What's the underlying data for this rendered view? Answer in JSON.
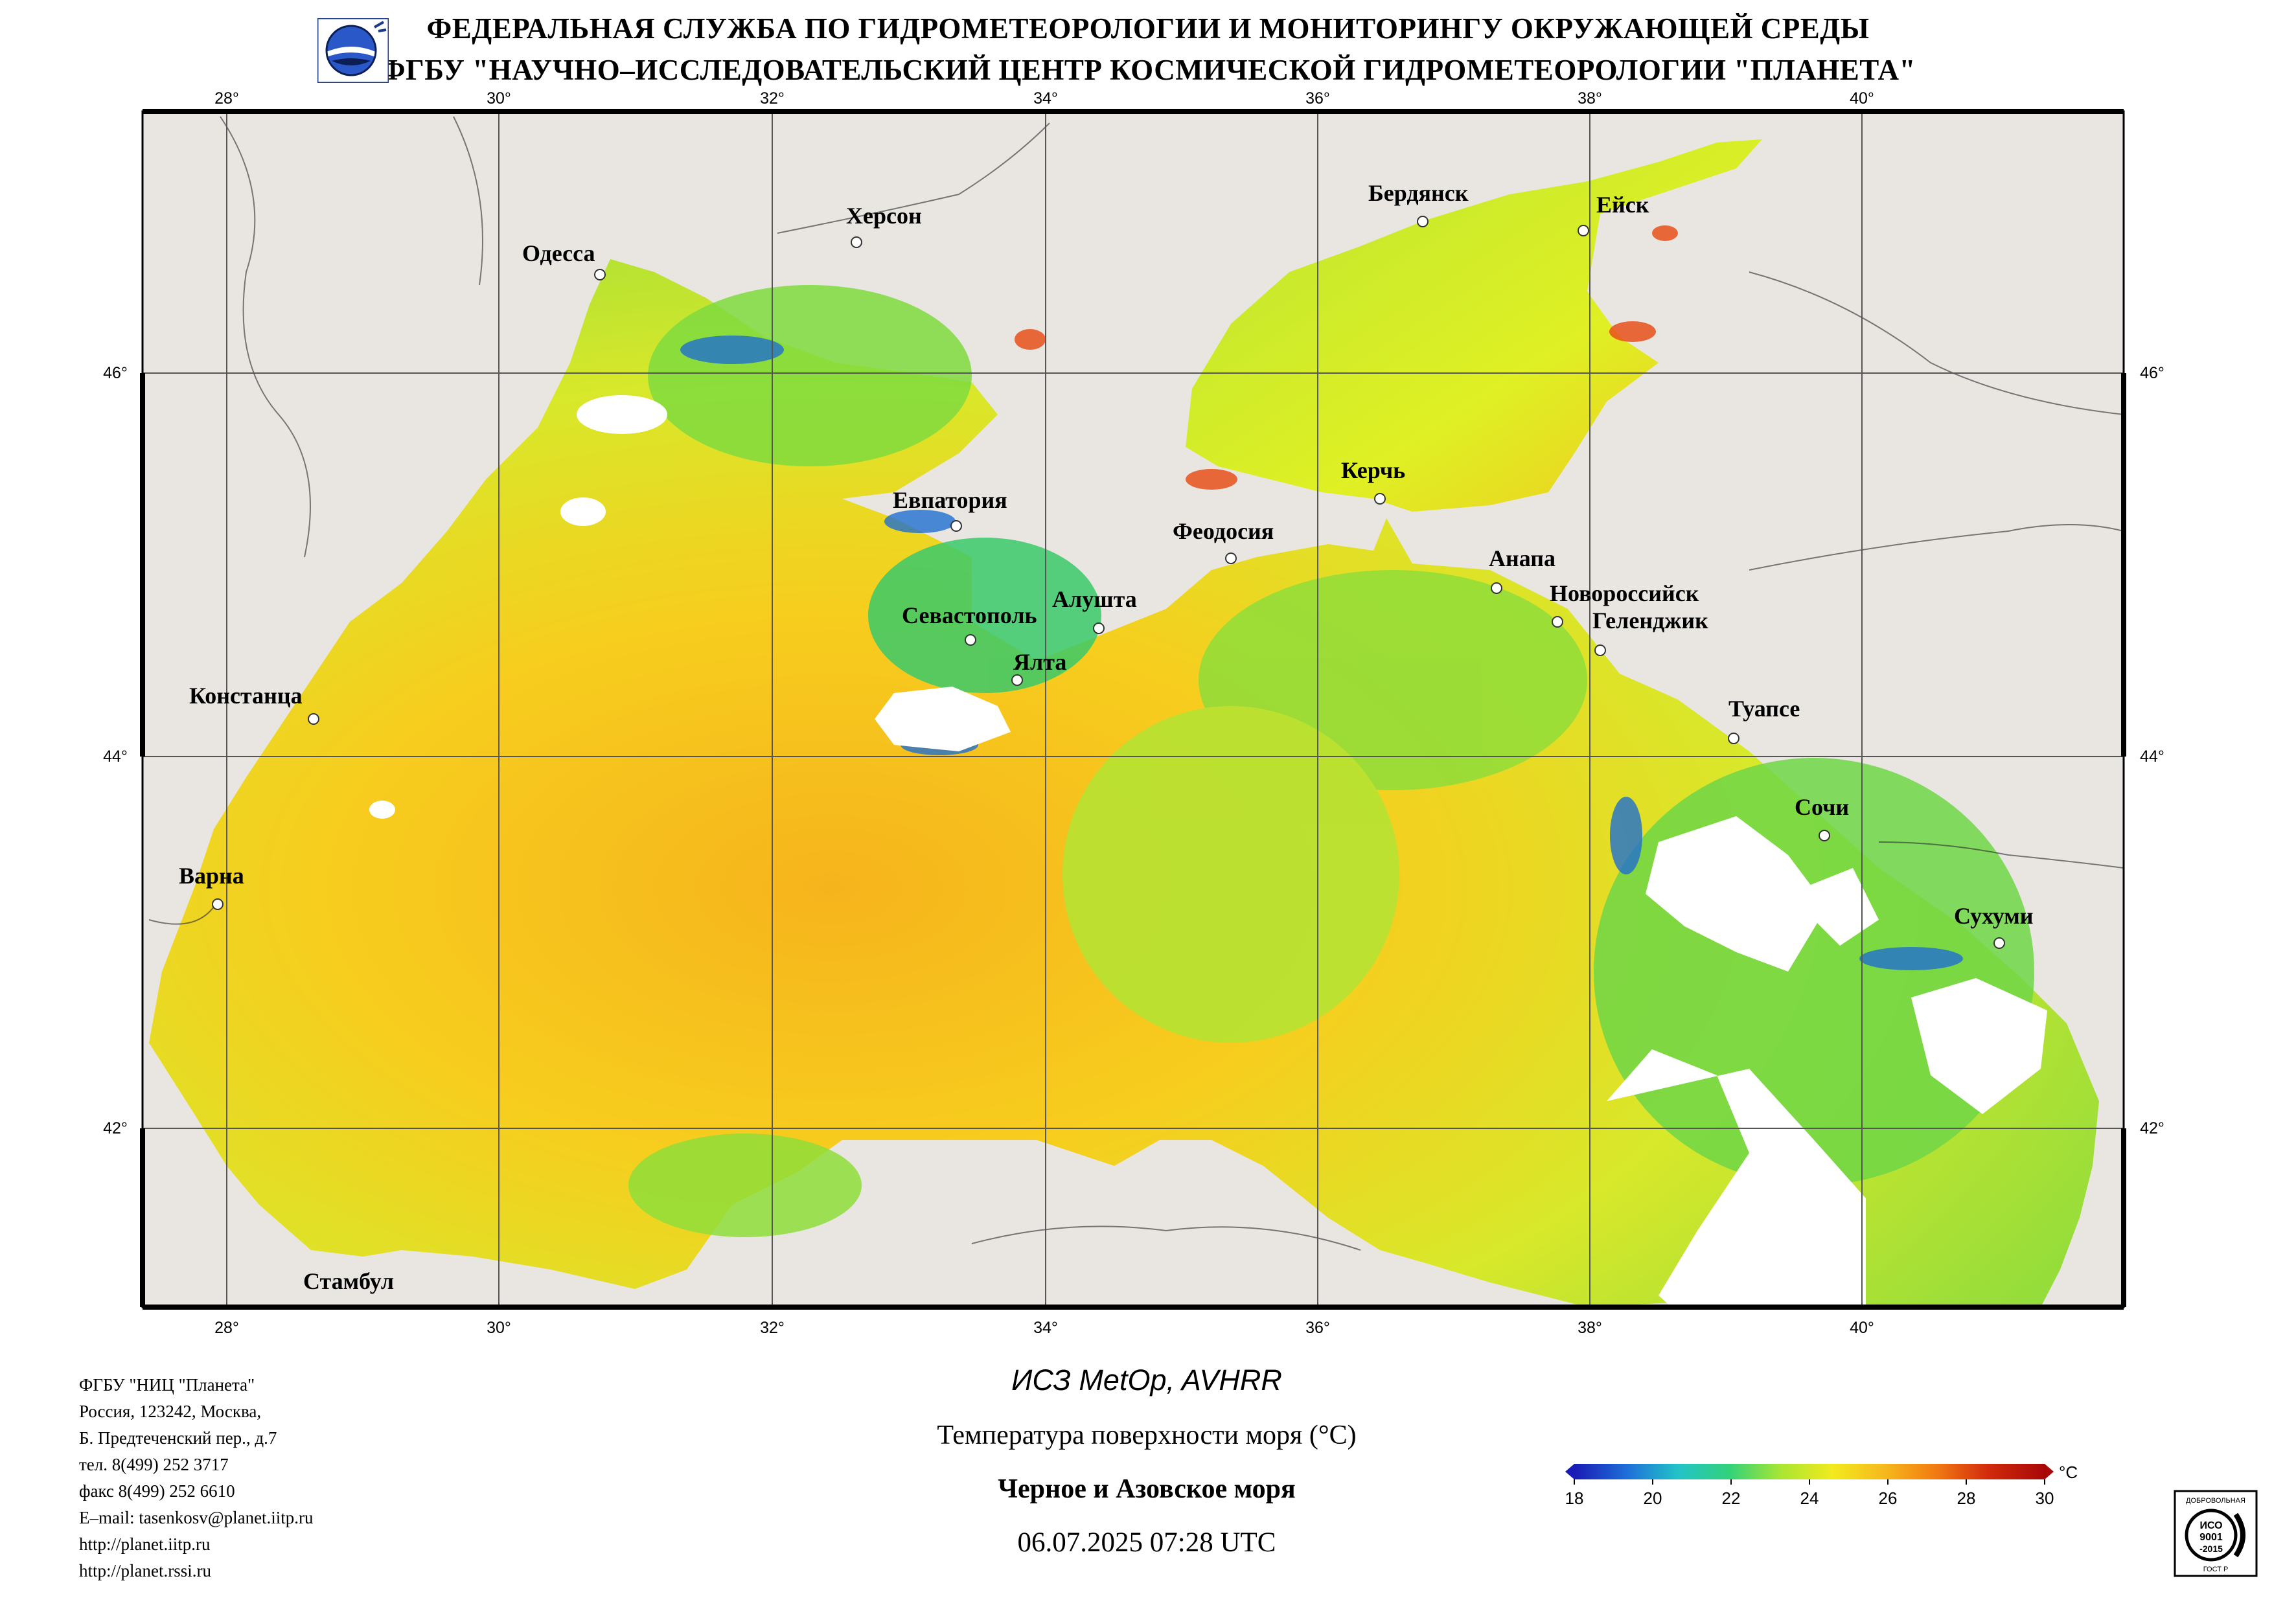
{
  "header": {
    "line1": "ФЕДЕРАЛЬНАЯ СЛУЖБА ПО ГИДРОМЕТЕОРОЛОГИИ И МОНИТОРИНГУ ОКРУЖАЮЩЕЙ СРЕДЫ",
    "line2": "ФГБУ \"НАУЧНО–ИССЛЕДОВАТЕЛЬСКИЙ ЦЕНТР КОСМИЧЕСКОЙ ГИДРОМЕТЕОРОЛОГИИ \"ПЛАНЕТА\""
  },
  "map": {
    "lon_ticks": [
      "28°",
      "30°",
      "32°",
      "34°",
      "36°",
      "38°",
      "40°"
    ],
    "lat_ticks": [
      "46°",
      "44°",
      "42°"
    ],
    "cities": [
      {
        "name": "Одесса"
      },
      {
        "name": "Херсон"
      },
      {
        "name": "Бердянск"
      },
      {
        "name": "Ейск"
      },
      {
        "name": "Керчь"
      },
      {
        "name": "Евпатория"
      },
      {
        "name": "Феодосия"
      },
      {
        "name": "Анапа"
      },
      {
        "name": "Севастополь"
      },
      {
        "name": "Алушта"
      },
      {
        "name": "Новороссийск"
      },
      {
        "name": "Геленджик"
      },
      {
        "name": "Ялта"
      },
      {
        "name": "Констанца"
      },
      {
        "name": "Туапсе"
      },
      {
        "name": "Сочи"
      },
      {
        "name": "Варна"
      },
      {
        "name": "Сухуми"
      },
      {
        "name": "Стамбул"
      }
    ],
    "colors": {
      "land": "#e9e6e2",
      "cloud": "#ffffff",
      "sst_warm": "#f6c21a",
      "sst_mid": "#cfe62a",
      "sst_cool": "#6fd646",
      "sst_cold": "#1f6fd0"
    }
  },
  "footer": {
    "contact": [
      "ФГБУ \"НИЦ \"Планета\"",
      "Россия, 123242, Москва,",
      "Б. Предтеченский пер., д.7",
      "тел. 8(499) 252 3717",
      "факс 8(499) 252 6610",
      "E–mail: tasenkosv@planet.iitp.ru",
      "http://planet.iitp.ru",
      "http://planet.rssi.ru"
    ],
    "satellite": "ИСЗ MetOp, AVHRR",
    "parameter": "Температура поверхности моря (°C)",
    "region": "Черное и Азовское моря",
    "datetime": "06.07.2025 07:28 UTC"
  },
  "colorbar": {
    "unit": "°C",
    "ticks": [
      "18",
      "20",
      "22",
      "24",
      "26",
      "28",
      "30"
    ],
    "min": 18,
    "max": 30,
    "stops": [
      "#1a1ab4",
      "#1e6ed8",
      "#22c3c8",
      "#33d27a",
      "#a9e632",
      "#f2ea1e",
      "#f6b81c",
      "#f27a12",
      "#d22a0c",
      "#a80808"
    ]
  },
  "iso_badge": {
    "top": "ДОБРОВОЛЬНАЯ",
    "mid1": "ИСО",
    "mid2": "9001",
    "mid3": "-2015",
    "bottom": "ГОСТ Р"
  }
}
